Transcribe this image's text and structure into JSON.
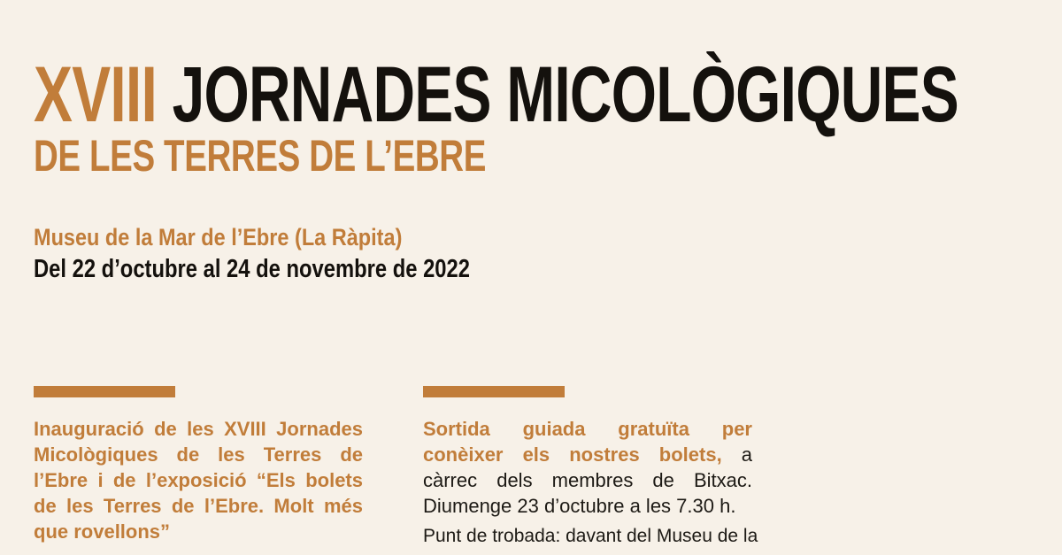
{
  "canvas": {
    "background": "#f7f1e8",
    "accent_orange": "#c17d3a",
    "ink_black": "#14110d"
  },
  "header": {
    "title_number": "XVIII",
    "title_text": "JORNADES MICOLÒGIQUES",
    "subtitle": "DE LES TERRES DE L’EBRE",
    "venue": "Museu de la Mar de l’Ebre (La Ràpita)",
    "date_range": "Del 22 d’octubre al 24 de novembre de 2022"
  },
  "events": [
    {
      "highlight": "Inauguració de les XVIII Jornades Micològiques de les Terres de l’Ebre i de l’exposició “Els bolets de les Terres de l’Ebre. Molt més que rovellons”",
      "detail": "",
      "note": ""
    },
    {
      "highlight": "Sortida guiada gratuïta per conèixer els nostres bolets,",
      "detail": " a càrrec dels membres de Bitxac. Diumenge 23 d’octubre a les 7.30 h.",
      "note": "Punt de trobada: davant del Museu de la"
    }
  ]
}
